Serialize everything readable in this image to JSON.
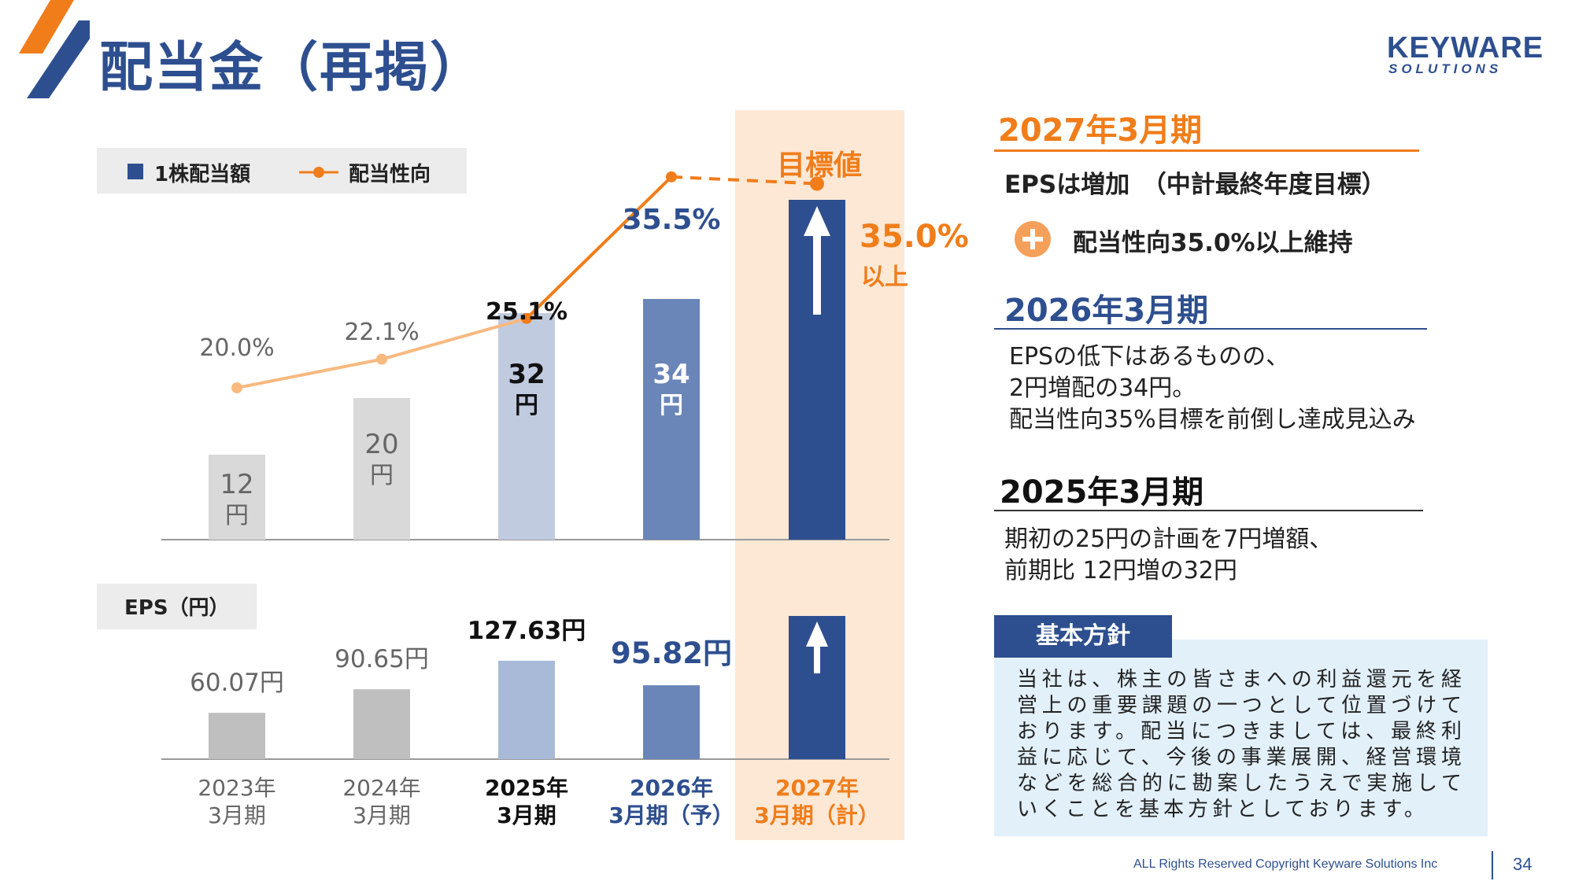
{
  "page": {
    "title": "配当金（再掲）",
    "logo_main": "KEYWARE",
    "logo_sub": "SOLUTIONS",
    "footer": "ALL Rights Reserved Copyright Keyware Solutions Inc",
    "page_number": "34"
  },
  "colors": {
    "primary_blue": "#2e4f8f",
    "accent_orange": "#f07d1a",
    "highlight_bg": "#fde8d6",
    "policy_bg": "#e2f0fa"
  },
  "chart_data": [
    {
      "type": "bar",
      "legend": [
        "1株配当額",
        "配当性向"
      ],
      "categories": [
        [
          "2023年",
          "3月期"
        ],
        [
          "2024年",
          "3月期"
        ],
        [
          "2025年",
          "3月期"
        ],
        [
          "2026年",
          "3月期（予）"
        ],
        [
          "2027年",
          "3月期（計）"
        ]
      ],
      "series": [
        {
          "name": "1株配当額",
          "values": [
            12,
            20,
            32,
            34,
            null
          ],
          "labels": [
            "12",
            "20",
            "32",
            "34",
            ""
          ],
          "unit": "円"
        },
        {
          "name": "配当性向",
          "type": "line",
          "values": [
            20.0,
            22.1,
            25.1,
            35.5,
            35.0
          ],
          "labels": [
            "20.0%",
            "22.1%",
            "25.1%",
            "35.5%",
            "35.0%"
          ]
        }
      ],
      "target_header": "目標値",
      "target_note": "以上"
    },
    {
      "type": "bar",
      "title": "EPS（円）",
      "categories": [
        "2023年3月期",
        "2024年3月期",
        "2025年3月期",
        "2026年3月期（予）",
        "2027年3月期（計）"
      ],
      "series": [
        {
          "name": "EPS",
          "values": [
            60.07,
            90.65,
            127.63,
            95.82,
            null
          ],
          "labels": [
            "60.07円",
            "90.65円",
            "127.63円",
            "95.82円",
            ""
          ]
        }
      ]
    }
  ],
  "right": {
    "s2027": {
      "header": "2027年3月期",
      "line1": "EPSは増加　（中計最終年度目標）",
      "line2": "配当性向35.0%以上維持"
    },
    "s2026": {
      "header": "2026年3月期",
      "lines": [
        "EPSの低下はあるものの、",
        "2円増配の34円。",
        "配当性向35%目標を前倒し達成見込み"
      ]
    },
    "s2025": {
      "header": "2025年3月期",
      "lines": [
        "期初の25円の計画を7円増額、",
        "前期比 12円増の32円"
      ]
    },
    "policy": {
      "label": "基本方針",
      "text": "当社は、株主の皆さまへの利益還元を経営上の重要課題の一つとして位置づけております。配当につきましては、最終利益に応じて、今後の事業展開、経営環境などを総合的に勘案したうえで実施していくことを基本方針としております。"
    }
  }
}
